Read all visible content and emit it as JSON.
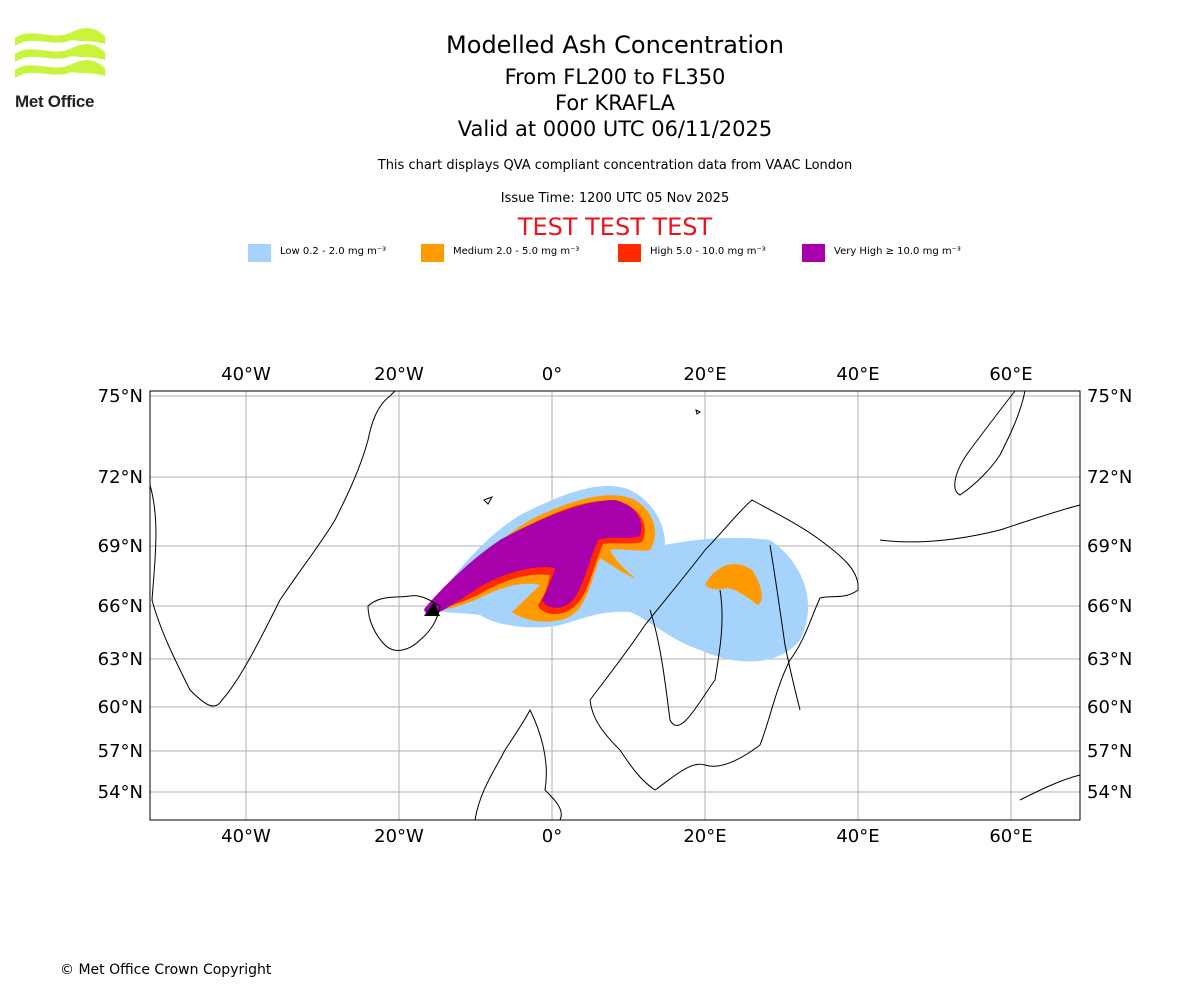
{
  "header": {
    "logo_text": "Met Office",
    "title": "Modelled Ash Concentration",
    "levels": "From FL200 to FL350",
    "volcano": "For KRAFLA",
    "valid": "Valid at 0000 UTC 06/11/2025",
    "description": "This chart displays QVA compliant concentration data from VAAC London",
    "issue_time": "Issue Time: 1200 UTC 05 Nov 2025",
    "test_banner": "TEST TEST TEST",
    "test_color": "#e8141e"
  },
  "legend": [
    {
      "label": "Low 0.2 - 2.0 mg m⁻³",
      "color": "#a6d3fc"
    },
    {
      "label": "Medium 2.0 - 5.0 mg m⁻³",
      "color": "#ff9a00"
    },
    {
      "label": "High 5.0 - 10.0 mg m⁻³",
      "color": "#ff2a00"
    },
    {
      "label": "Very High  ≥  10.0 mg m⁻³",
      "color": "#a800aa"
    }
  ],
  "map": {
    "lon_labels": [
      "40°W",
      "20°W",
      "0°",
      "20°E",
      "40°E",
      "60°E"
    ],
    "lat_labels": [
      "75°N",
      "72°N",
      "69°N",
      "66°N",
      "63°N",
      "60°N",
      "57°N",
      "54°N"
    ]
  },
  "footer": {
    "copyright": "© Met Office Crown Copyright"
  }
}
